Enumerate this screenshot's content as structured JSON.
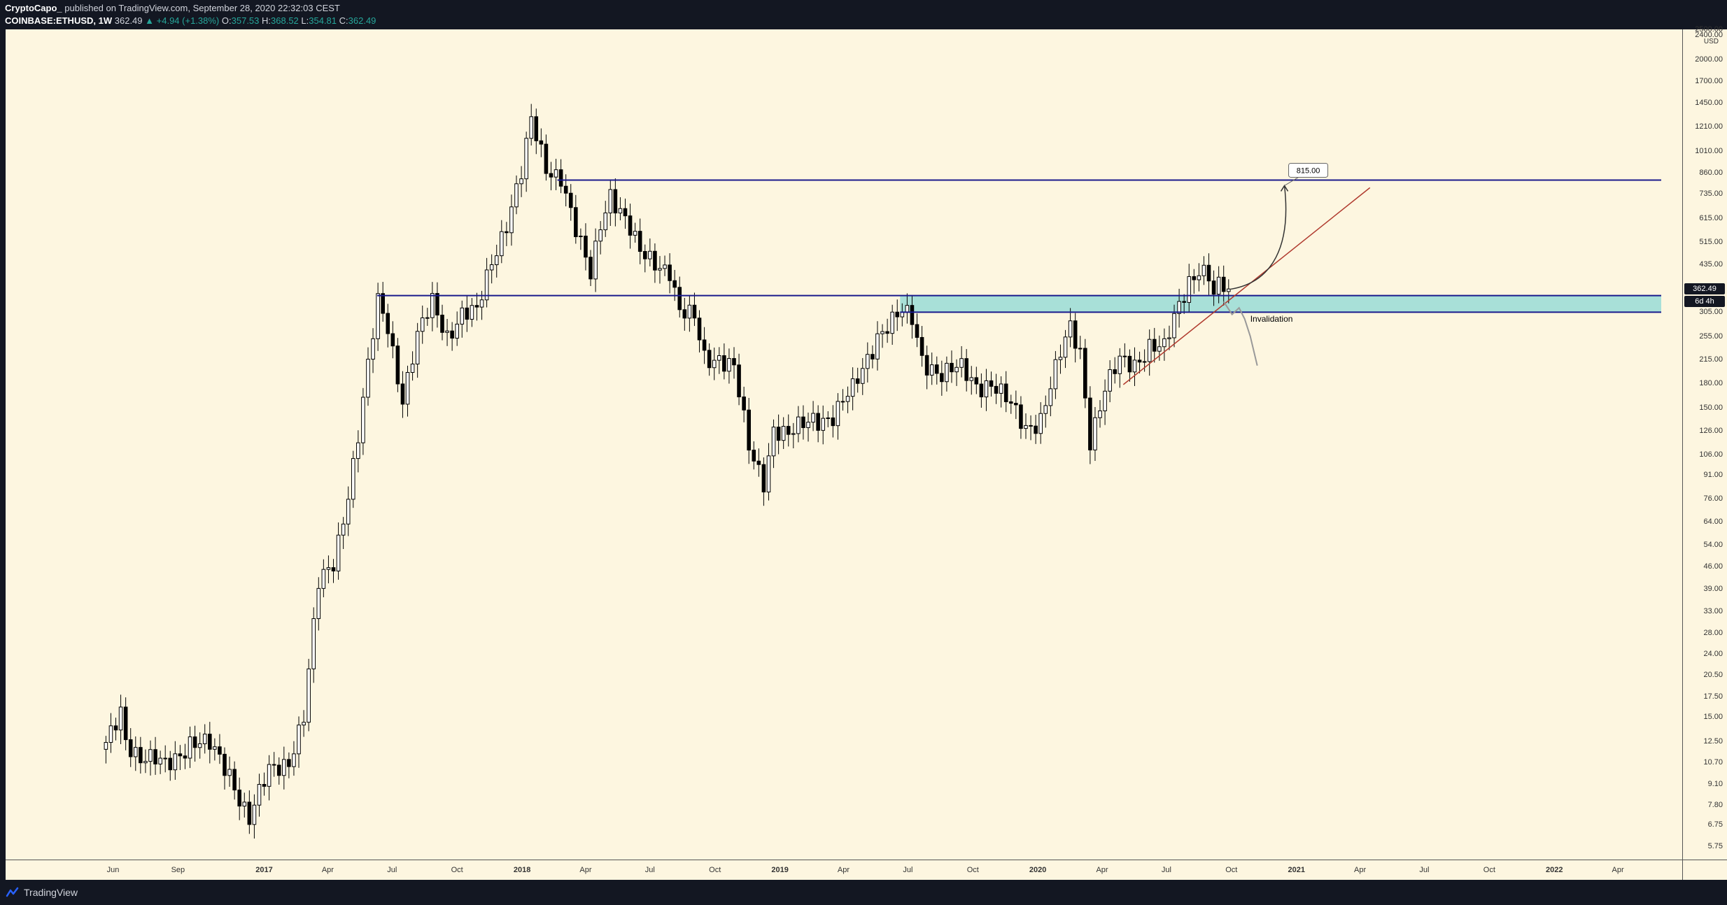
{
  "header": {
    "author": "CryptoCapo_",
    "published": "published on TradingView.com, September 28, 2020 22:32:03 CEST",
    "symbol": "COINBASE:ETHUSD, 1W",
    "last": "362.49",
    "change": "+4.94 (+1.38%)",
    "open_label": "O:",
    "open": "357.53",
    "high_label": "H:",
    "high": "368.52",
    "low_label": "L:",
    "low": "354.81",
    "close_label": "C:",
    "close": "362.49"
  },
  "footer": {
    "brand": "TradingView"
  },
  "colors": {
    "background": "#fdf6e0",
    "frame": "#131722",
    "candle_up_fill": "#ffffff",
    "candle_down_fill": "#000000",
    "level_line": "#1a1a8c",
    "zone_fill": "#a8e0d8",
    "trendline": "#b03a2e",
    "projection": "#333333",
    "invalidation_path": "#999999",
    "label_box": "#ffffff",
    "price_tag_bg": "#131722"
  },
  "chart_data": {
    "type": "candlestick",
    "symbol": "COINBASE:ETHUSD",
    "interval": "1W",
    "y_scale": "log",
    "currency": "USD",
    "y_ticks": [
      "2500.00",
      "2400.00",
      "2000.00",
      "1700.00",
      "1450.00",
      "1210.00",
      "1010.00",
      "860.00",
      "735.00",
      "615.00",
      "515.00",
      "435.00",
      "360.00",
      "305.00",
      "255.00",
      "215.00",
      "180.00",
      "150.00",
      "126.00",
      "106.00",
      "91.00",
      "76.00",
      "64.00",
      "54.00",
      "46.00",
      "39.00",
      "33.00",
      "28.00",
      "24.00",
      "20.50",
      "17.50",
      "15.00",
      "12.50",
      "10.70",
      "9.10",
      "7.80",
      "6.75",
      "5.75"
    ],
    "x_ticks": [
      "Jun",
      "Sep",
      "2017",
      "Apr",
      "Jul",
      "Oct",
      "2018",
      "Apr",
      "Jul",
      "Oct",
      "2019",
      "Apr",
      "Jul",
      "Oct",
      "2020",
      "Apr",
      "Jul",
      "Oct",
      "2021",
      "Apr",
      "Jul",
      "Oct",
      "2022",
      "Apr"
    ],
    "price_labels": {
      "last": "362.49",
      "countdown": "6d 4h"
    },
    "levels": [
      {
        "price": 815
      },
      {
        "price": 345
      }
    ],
    "zone": {
      "low": 305,
      "high": 345
    },
    "trendline": {
      "from": {
        "date": "2020-05-01",
        "price": 178
      },
      "to": {
        "date": "2021-04-15",
        "price": 770
      }
    },
    "projection_target": {
      "price": 815,
      "label": "815.00"
    },
    "annotations": [
      {
        "text": "Invalidation"
      }
    ],
    "anchors": [
      [
        "2016-05-22",
        12
      ],
      [
        "2016-06-12",
        16
      ],
      [
        "2016-06-19",
        13
      ],
      [
        "2016-07-10",
        11
      ],
      [
        "2016-08-14",
        10.5
      ],
      [
        "2016-09-18",
        12.5
      ],
      [
        "2016-10-16",
        12
      ],
      [
        "2016-11-13",
        10
      ],
      [
        "2016-12-11",
        7
      ],
      [
        "2017-01-08",
        10
      ],
      [
        "2017-02-05",
        11
      ],
      [
        "2017-02-26",
        15
      ],
      [
        "2017-03-19",
        40
      ],
      [
        "2017-04-09",
        48
      ],
      [
        "2017-04-30",
        80
      ],
      [
        "2017-05-14",
        120
      ],
      [
        "2017-05-28",
        200
      ],
      [
        "2017-06-11",
        330
      ],
      [
        "2017-06-25",
        280
      ],
      [
        "2017-07-16",
        160
      ],
      [
        "2017-08-06",
        250
      ],
      [
        "2017-08-27",
        330
      ],
      [
        "2017-09-17",
        260
      ],
      [
        "2017-10-08",
        300
      ],
      [
        "2017-10-29",
        300
      ],
      [
        "2017-11-19",
        450
      ],
      [
        "2017-12-10",
        600
      ],
      [
        "2017-12-31",
        850
      ],
      [
        "2018-01-14",
        1250
      ],
      [
        "2018-02-04",
        900
      ],
      [
        "2018-02-25",
        850
      ],
      [
        "2018-03-18",
        550
      ],
      [
        "2018-04-08",
        400
      ],
      [
        "2018-04-22",
        600
      ],
      [
        "2018-05-06",
        750
      ],
      [
        "2018-05-27",
        600
      ],
      [
        "2018-06-17",
        470
      ],
      [
        "2018-07-08",
        450
      ],
      [
        "2018-07-29",
        420
      ],
      [
        "2018-08-12",
        300
      ],
      [
        "2018-09-02",
        290
      ],
      [
        "2018-09-16",
        220
      ],
      [
        "2018-10-07",
        220
      ],
      [
        "2018-10-28",
        200
      ],
      [
        "2018-11-18",
        110
      ],
      [
        "2018-12-09",
        88
      ],
      [
        "2018-12-23",
        130
      ],
      [
        "2019-01-13",
        120
      ],
      [
        "2019-02-17",
        140
      ],
      [
        "2019-03-17",
        140
      ],
      [
        "2019-04-14",
        170
      ],
      [
        "2019-05-19",
        260
      ],
      [
        "2019-06-23",
        300
      ],
      [
        "2019-07-07",
        290
      ],
      [
        "2019-07-21",
        220
      ],
      [
        "2019-08-18",
        190
      ],
      [
        "2019-09-15",
        200
      ],
      [
        "2019-10-06",
        180
      ],
      [
        "2019-10-27",
        180
      ],
      [
        "2019-11-24",
        150
      ],
      [
        "2019-12-15",
        130
      ],
      [
        "2020-01-05",
        140
      ],
      [
        "2020-02-02",
        220
      ],
      [
        "2020-02-16",
        270
      ],
      [
        "2020-03-01",
        230
      ],
      [
        "2020-03-15",
        120
      ],
      [
        "2020-04-05",
        170
      ],
      [
        "2020-04-26",
        210
      ],
      [
        "2020-05-17",
        210
      ],
      [
        "2020-06-07",
        240
      ],
      [
        "2020-06-28",
        230
      ],
      [
        "2020-07-19",
        320
      ],
      [
        "2020-08-02",
        390
      ],
      [
        "2020-08-16",
        430
      ],
      [
        "2020-08-30",
        400
      ],
      [
        "2020-09-06",
        340
      ],
      [
        "2020-09-13",
        365
      ],
      [
        "2020-09-27",
        362
      ]
    ]
  }
}
